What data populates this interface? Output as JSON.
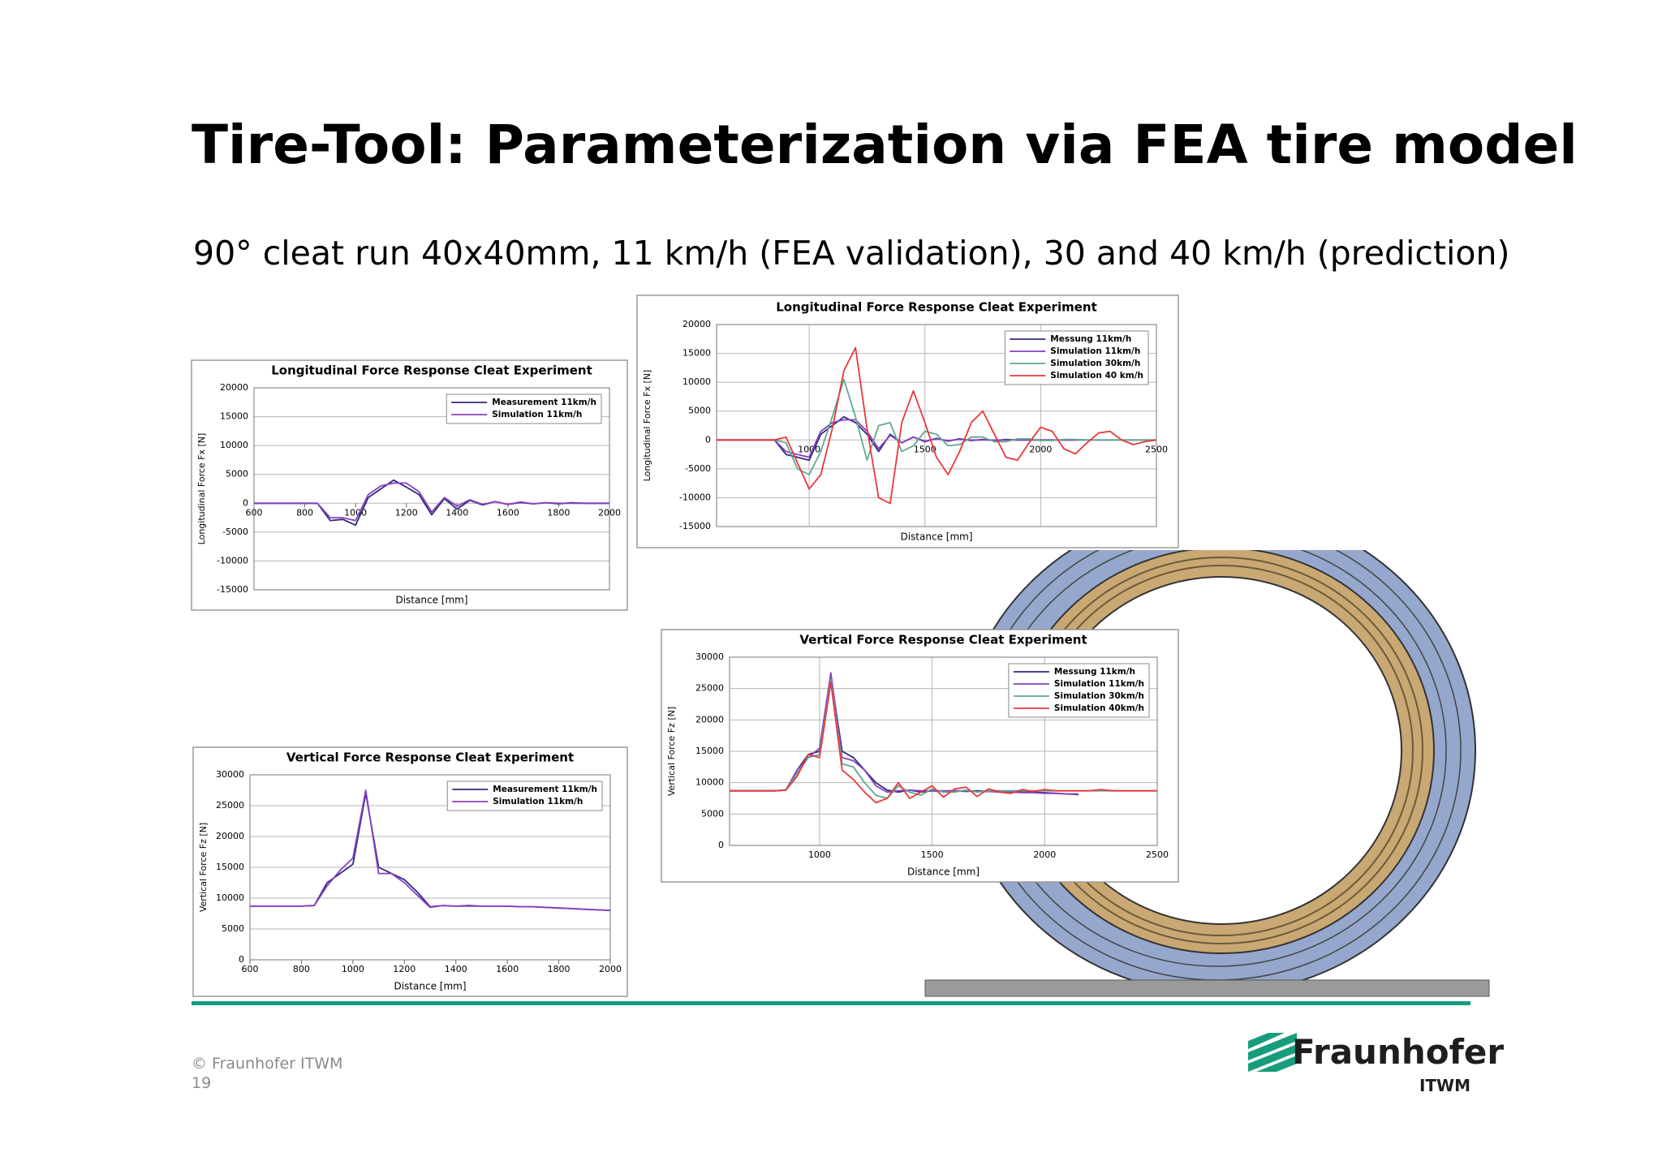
{
  "header": {
    "title": "Tire-Tool: Parameterization via FEA tire model",
    "subtitle": "90° cleat run 40x40mm, 11 km/h (FEA validation), 30 and 40 km/h (prediction)"
  },
  "footer": {
    "copyright": "© Fraunhofer ITWM",
    "page": "19"
  },
  "logo": {
    "name": "Fraunhofer",
    "institute": "ITWM"
  },
  "chart_data": [
    {
      "type": "line",
      "title": "Longitudinal Force Response Cleat Experiment",
      "x_label": "Distance [mm]",
      "y_label": "Longitudinal Force Fx [N]",
      "xlim": [
        600,
        2000
      ],
      "xticks": [
        600,
        800,
        1000,
        1200,
        1400,
        1600,
        1800,
        2000
      ],
      "ylim": [
        -15000,
        20000
      ],
      "yticks": [
        20000,
        15000,
        10000,
        5000,
        0,
        -5000,
        -10000,
        -15000
      ],
      "grid": "y",
      "legend": "upper right",
      "x": [
        600,
        650,
        700,
        750,
        800,
        850,
        900,
        950,
        1000,
        1050,
        1100,
        1150,
        1200,
        1250,
        1300,
        1350,
        1400,
        1450,
        1500,
        1550,
        1600,
        1650,
        1700,
        1750,
        1800,
        1850,
        1900,
        1950,
        2000
      ],
      "series": [
        {
          "name": "Measurement 11km/h",
          "color": "#2b2c7e",
          "values": [
            0,
            0,
            0,
            0,
            0,
            0,
            -3000,
            -2800,
            -3800,
            1000,
            2500,
            4000,
            2800,
            1500,
            -2000,
            800,
            -1000,
            500,
            -300,
            300,
            -200,
            200,
            -100,
            100,
            -100,
            100,
            0,
            0,
            0
          ]
        },
        {
          "name": "Simulation 11km/h",
          "color": "#8a3fbf",
          "values": [
            0,
            0,
            0,
            0,
            0,
            0,
            -2500,
            -2500,
            -3000,
            1500,
            3000,
            3500,
            3500,
            2000,
            -1500,
            1000,
            -500,
            600,
            -200,
            300,
            -200,
            100,
            -100,
            100,
            0,
            0,
            0,
            0,
            0
          ]
        }
      ]
    },
    {
      "type": "line",
      "title": "Longitudinal Force Response Cleat Experiment",
      "x_label": "Distance [mm]",
      "y_label": "Longitudinal Force Fx [N]",
      "xlim": [
        600,
        2500
      ],
      "xticks": [
        1000,
        1500,
        2000,
        2500
      ],
      "ylim": [
        -15000,
        20000
      ],
      "yticks": [
        20000,
        15000,
        10000,
        5000,
        0,
        -5000,
        -10000,
        -15000
      ],
      "grid": "both",
      "legend": "upper right",
      "x": [
        600,
        650,
        700,
        750,
        800,
        850,
        900,
        950,
        1000,
        1050,
        1100,
        1150,
        1200,
        1250,
        1300,
        1350,
        1400,
        1450,
        1500,
        1550,
        1600,
        1650,
        1700,
        1750,
        1800,
        1850,
        1900,
        1950,
        2000,
        2050,
        2100,
        2150,
        2200,
        2250,
        2300,
        2350,
        2400,
        2450,
        2500
      ],
      "series": [
        {
          "name": "Messung 11km/h",
          "color": "#2b2c7e",
          "values": [
            0,
            0,
            0,
            0,
            0,
            0,
            -2500,
            -3000,
            -3500,
            1000,
            2500,
            4000,
            3000,
            1000,
            -2000,
            1000,
            -500,
            500,
            -300,
            300,
            -200,
            200,
            -100,
            100,
            -100,
            100,
            0,
            0,
            0,
            0,
            0,
            0,
            null,
            null,
            null,
            null,
            null,
            null,
            null
          ]
        },
        {
          "name": "Simulation 11km/h",
          "color": "#8a3fbf",
          "values": [
            0,
            0,
            0,
            0,
            0,
            0,
            -2000,
            -2500,
            -3000,
            1500,
            3000,
            3500,
            3500,
            1500,
            -1500,
            800,
            -500,
            500,
            -200,
            200,
            -100,
            100,
            0,
            0,
            0,
            0,
            0,
            0,
            0,
            0,
            0,
            0,
            0,
            0,
            0,
            0,
            0,
            0,
            0
          ]
        },
        {
          "name": "Simulation 30km/h",
          "color": "#5fa98f",
          "values": [
            0,
            0,
            0,
            0,
            0,
            0,
            -500,
            -5000,
            -6000,
            -2000,
            4000,
            10500,
            4000,
            -3500,
            2500,
            3000,
            -2000,
            -1000,
            1500,
            1000,
            -1000,
            -800,
            500,
            500,
            -300,
            -300,
            200,
            200,
            -100,
            -100,
            100,
            100,
            0,
            0,
            0,
            0,
            0,
            0,
            0
          ]
        },
        {
          "name": "Simulation 40 km/h",
          "color": "#e8383d",
          "values": [
            0,
            0,
            0,
            0,
            0,
            0,
            500,
            -4000,
            -8500,
            -6000,
            2000,
            12000,
            16000,
            2000,
            -10000,
            -11000,
            3000,
            8500,
            3000,
            -3000,
            -6000,
            -2000,
            3000,
            5000,
            1000,
            -3000,
            -3500,
            -500,
            2200,
            1500,
            -1500,
            -2400,
            -500,
            1200,
            1500,
            0,
            -800,
            -300,
            0
          ]
        }
      ]
    },
    {
      "type": "line",
      "title": "Vertical Force Response Cleat Experiment",
      "x_label": "Distance [mm]",
      "y_label": "Vertical Force Fz [N]",
      "xlim": [
        600,
        2000
      ],
      "xticks": [
        600,
        800,
        1000,
        1200,
        1400,
        1600,
        1800,
        2000
      ],
      "ylim": [
        0,
        30000
      ],
      "yticks": [
        30000,
        25000,
        20000,
        15000,
        10000,
        5000,
        0
      ],
      "grid": "y",
      "legend": "upper right",
      "x": [
        600,
        650,
        700,
        750,
        800,
        850,
        900,
        950,
        1000,
        1050,
        1100,
        1150,
        1200,
        1250,
        1300,
        1350,
        1400,
        1450,
        1500,
        1550,
        1600,
        1650,
        1700,
        1750,
        1800,
        1850,
        1900,
        1950,
        2000
      ],
      "series": [
        {
          "name": "Measurement 11km/h",
          "color": "#2b2c7e",
          "values": [
            8700,
            8700,
            8700,
            8700,
            8700,
            8800,
            12500,
            14000,
            15500,
            27000,
            15000,
            14000,
            13000,
            11000,
            8600,
            8800,
            8700,
            8800,
            8700,
            8700,
            8700,
            8600,
            8600,
            8500,
            8400,
            8300,
            8200,
            8100,
            8000
          ]
        },
        {
          "name": "Simulation 11km/h",
          "color": "#8a3fbf",
          "values": [
            8700,
            8700,
            8700,
            8700,
            8700,
            8800,
            12000,
            14500,
            16500,
            27500,
            14000,
            14000,
            12500,
            10500,
            8500,
            8800,
            8700,
            8700,
            8700,
            8700,
            8700,
            8600,
            8600,
            8500,
            8400,
            8300,
            8200,
            8100,
            8000
          ]
        }
      ]
    },
    {
      "type": "line",
      "title": "Vertical Force Response Cleat Experiment",
      "x_label": "Distance [mm]",
      "y_label": "Vertical Force Fz [N]",
      "xlim": [
        600,
        2500
      ],
      "xticks": [
        1000,
        1500,
        2000,
        2500
      ],
      "ylim": [
        0,
        30000
      ],
      "yticks": [
        30000,
        25000,
        20000,
        15000,
        10000,
        5000,
        0
      ],
      "grid": "both",
      "legend": "upper right",
      "x": [
        600,
        650,
        700,
        750,
        800,
        850,
        900,
        950,
        1000,
        1050,
        1100,
        1150,
        1200,
        1250,
        1300,
        1350,
        1400,
        1450,
        1500,
        1550,
        1600,
        1650,
        1700,
        1750,
        1800,
        1850,
        1900,
        1950,
        2000,
        2050,
        2100,
        2150,
        2200,
        2250,
        2300,
        2350,
        2400,
        2450,
        2500
      ],
      "series": [
        {
          "name": "Messung 11km/h",
          "color": "#2b2c7e",
          "values": [
            8700,
            8700,
            8700,
            8700,
            8700,
            8800,
            12000,
            14500,
            15000,
            27000,
            15000,
            14000,
            12000,
            10000,
            8800,
            8500,
            8800,
            8500,
            8700,
            8600,
            8700,
            8600,
            8700,
            8600,
            8700,
            8500,
            8600,
            8500,
            8400,
            8300,
            8200,
            8100,
            null,
            null,
            null,
            null,
            null,
            null,
            null
          ]
        },
        {
          "name": "Simulation 11km/h",
          "color": "#8a3fbf",
          "values": [
            8700,
            8700,
            8700,
            8700,
            8700,
            8800,
            12000,
            14000,
            15500,
            27500,
            14000,
            13500,
            12000,
            9500,
            8500,
            8700,
            8800,
            8700,
            8700,
            8700,
            8700,
            8700,
            8600,
            8600,
            8500,
            8500,
            8400,
            8400,
            8300,
            8300,
            8200,
            8200,
            null,
            null,
            null,
            null,
            null,
            null,
            null
          ]
        },
        {
          "name": "Simulation 30km/h",
          "color": "#5fa98f",
          "values": [
            8700,
            8700,
            8700,
            8700,
            8700,
            8800,
            11500,
            14000,
            14500,
            26500,
            13000,
            12500,
            10000,
            8000,
            7500,
            9500,
            8500,
            8000,
            9000,
            8500,
            8500,
            8800,
            8500,
            8700,
            8700,
            8700,
            8700,
            8700,
            8700,
            8700,
            8700,
            8700,
            8700,
            8700,
            8700,
            8700,
            8700,
            8700,
            8700
          ]
        },
        {
          "name": "Simulation 40km/h",
          "color": "#e8383d",
          "values": [
            8700,
            8700,
            8700,
            8700,
            8700,
            8800,
            11000,
            14500,
            14000,
            26000,
            12000,
            10500,
            8500,
            6800,
            7500,
            10000,
            7500,
            8500,
            9500,
            7700,
            9000,
            9300,
            7800,
            9000,
            8500,
            8300,
            8900,
            8600,
            8900,
            8700,
            8700,
            8700,
            8700,
            8900,
            8700,
            8700,
            8700,
            8700,
            8700
          ]
        }
      ]
    }
  ]
}
